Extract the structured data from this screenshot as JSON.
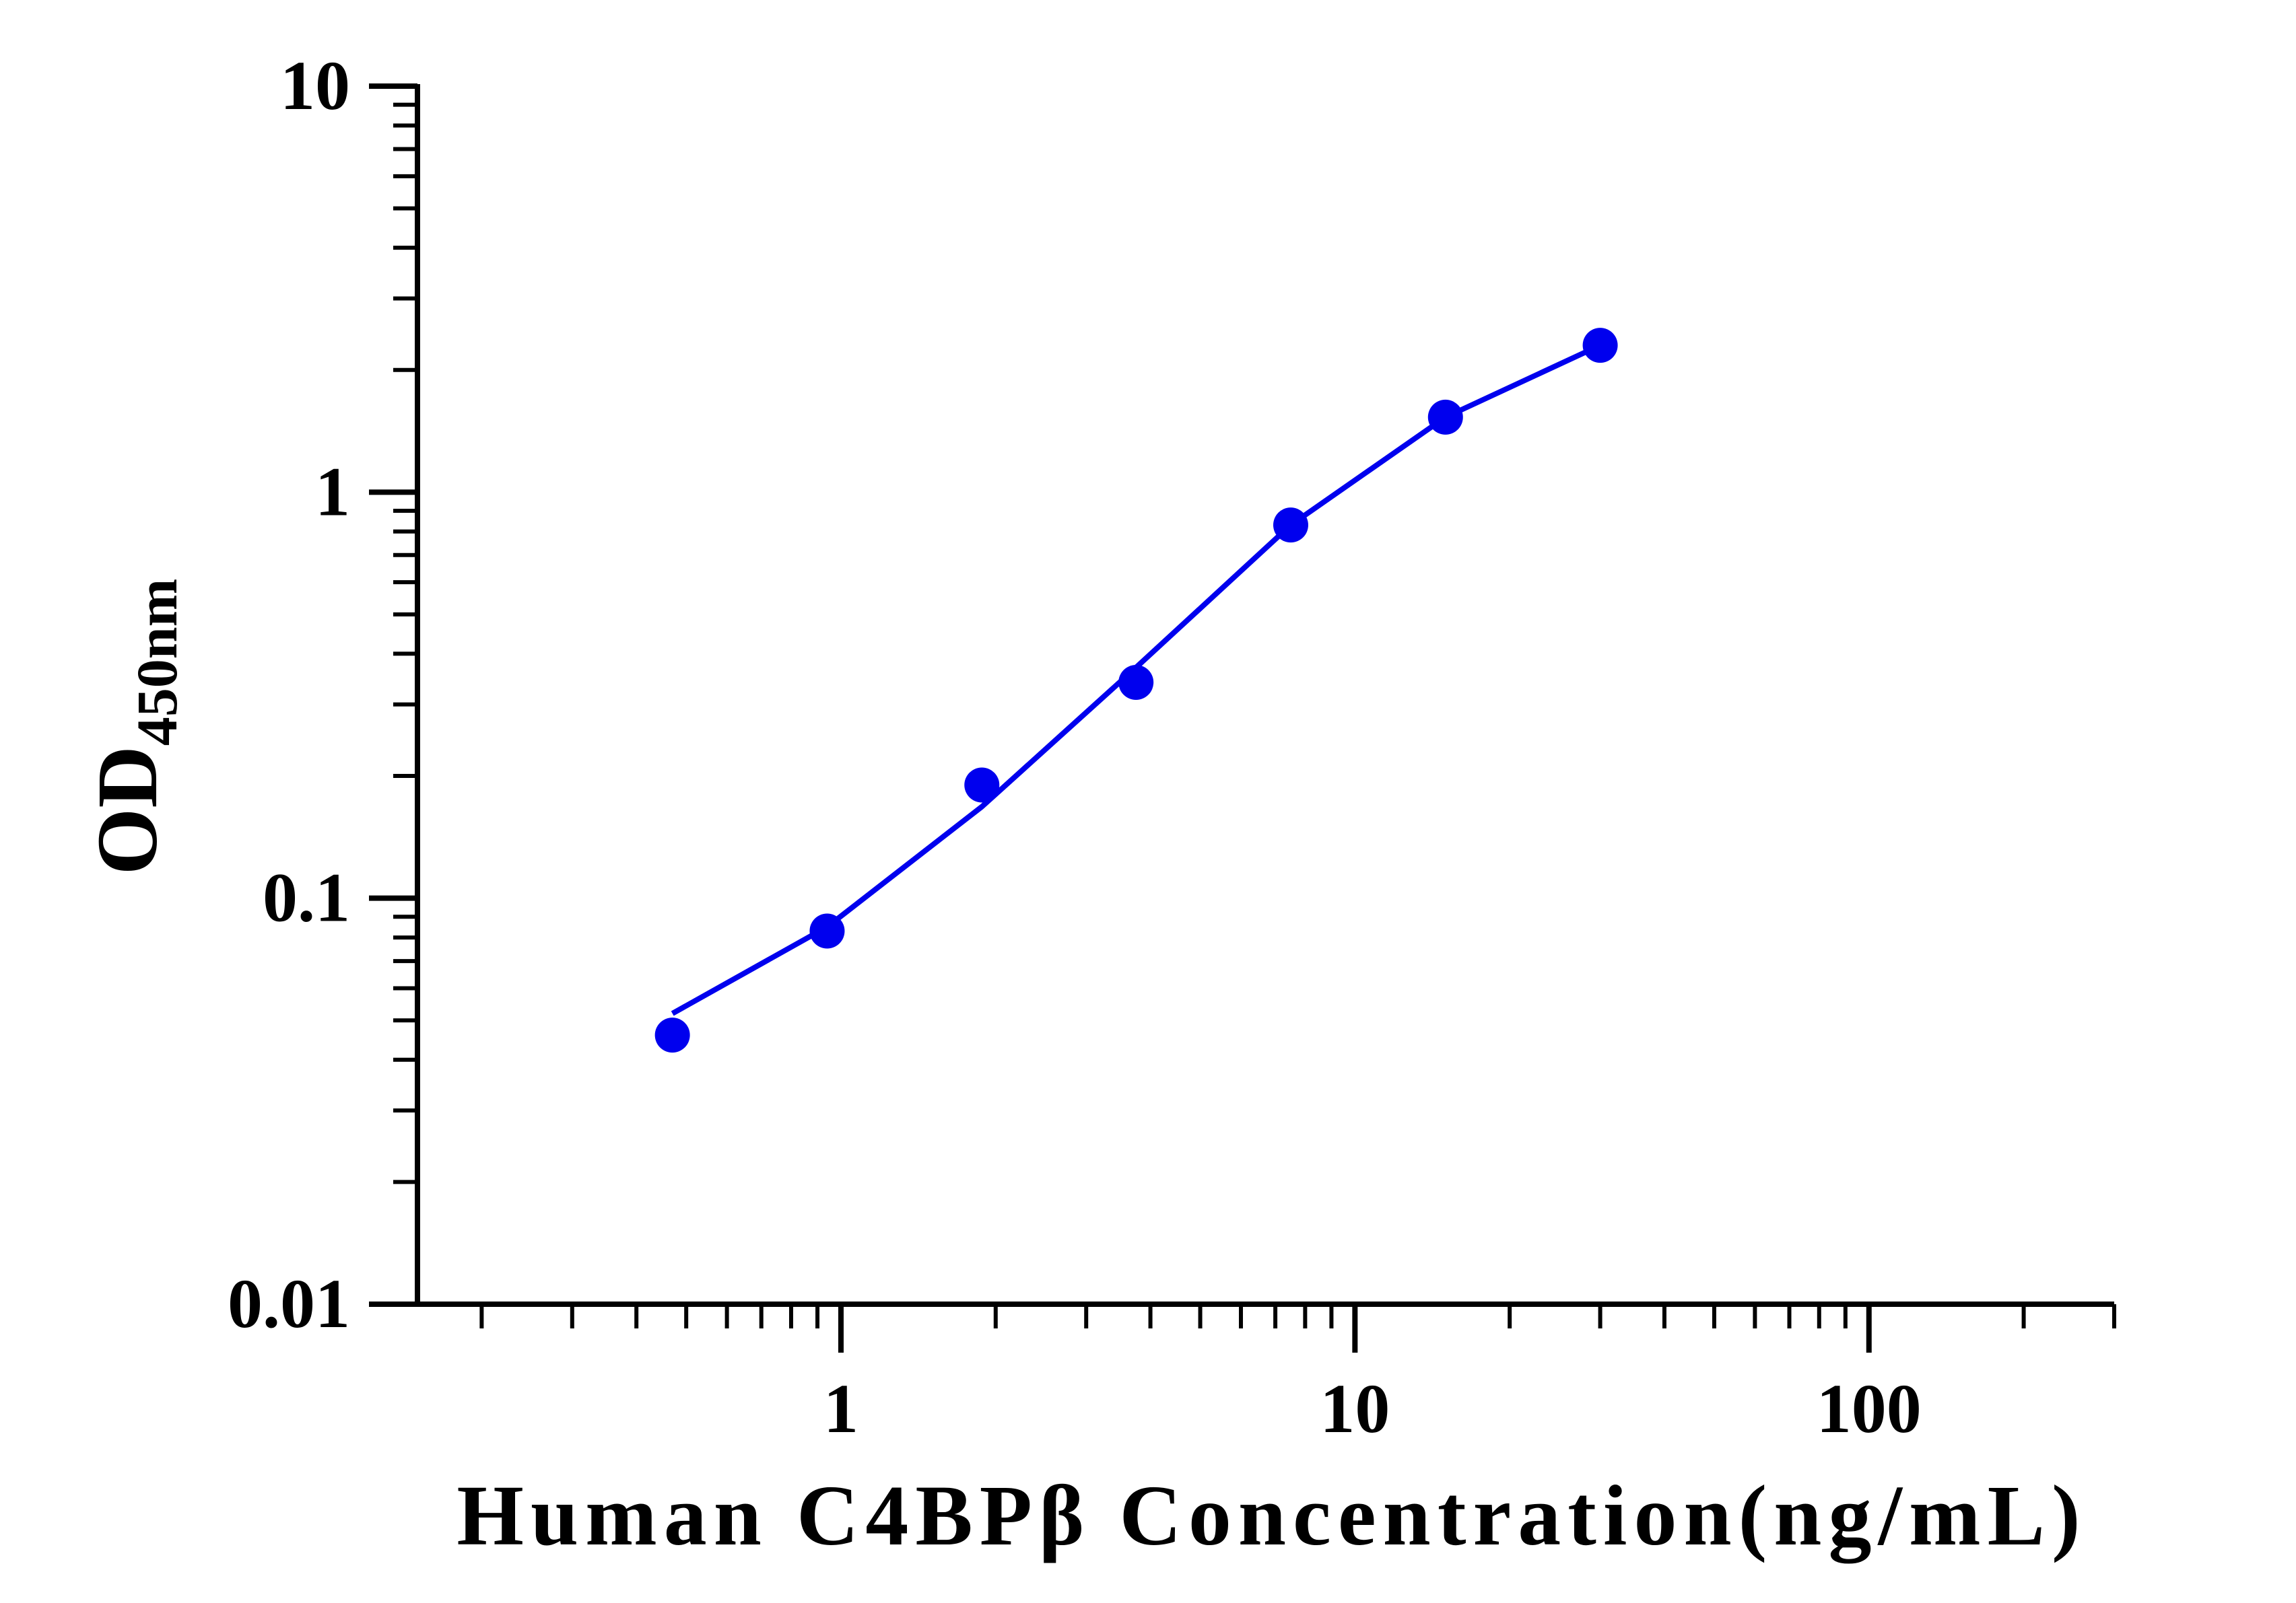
{
  "chart_data": {
    "type": "scatter",
    "xlabel": "Human C4BPβ Concentration(ng/mL)",
    "ylabel_main": "OD",
    "ylabel_sub": "450nm",
    "x_scale": "log",
    "y_scale": "log",
    "xlim": [
      0.15,
      300
    ],
    "ylim": [
      0.01,
      10
    ],
    "x_ticks": [
      {
        "value": 1,
        "label": "1"
      },
      {
        "value": 10,
        "label": "10"
      },
      {
        "value": 100,
        "label": "100"
      }
    ],
    "y_ticks": [
      {
        "value": 0.01,
        "label": "0.01"
      },
      {
        "value": 0.1,
        "label": "0.1"
      },
      {
        "value": 1,
        "label": "1"
      },
      {
        "value": 10,
        "label": "10"
      }
    ],
    "series": [
      {
        "points": [
          {
            "x": 0.47,
            "y": 0.046
          },
          {
            "x": 0.94,
            "y": 0.083
          },
          {
            "x": 1.88,
            "y": 0.19
          },
          {
            "x": 3.75,
            "y": 0.34
          },
          {
            "x": 7.5,
            "y": 0.83
          },
          {
            "x": 15,
            "y": 1.53
          },
          {
            "x": 30,
            "y": 2.3
          }
        ],
        "fit_line": [
          {
            "x": 0.47,
            "y": 0.052
          },
          {
            "x": 0.94,
            "y": 0.085
          },
          {
            "x": 1.88,
            "y": 0.168
          },
          {
            "x": 3.75,
            "y": 0.37
          },
          {
            "x": 7.5,
            "y": 0.83
          },
          {
            "x": 15,
            "y": 1.53
          },
          {
            "x": 30,
            "y": 2.3
          }
        ]
      }
    ],
    "colors": {
      "series": "#0000ee",
      "axis": "#000000"
    },
    "grid": false,
    "legend": "none"
  }
}
